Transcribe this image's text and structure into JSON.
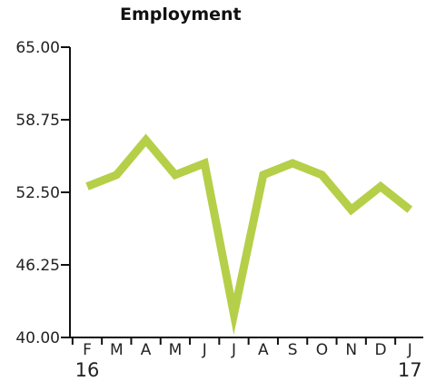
{
  "chart_data": {
    "type": "line",
    "title": "Employment",
    "xlabel": "",
    "ylabel": "",
    "categories": [
      "F",
      "M",
      "A",
      "M",
      "J",
      "J",
      "A",
      "S",
      "O",
      "N",
      "D",
      "J"
    ],
    "year_labels": [
      {
        "text": "16",
        "category_index": 0
      },
      {
        "text": "17",
        "category_index": 11
      }
    ],
    "yticks": [
      "40.00",
      "46.25",
      "52.50",
      "58.75",
      "65.00"
    ],
    "ylim": [
      40.0,
      65.0
    ],
    "grid": false,
    "series": [
      {
        "values": [
          53.0,
          54.0,
          57.0,
          54.0,
          55.0,
          42.0,
          54.0,
          55.0,
          54.0,
          51.0,
          53.0,
          51.0
        ],
        "color": "#b5cf49"
      }
    ],
    "axis_color": "#111111"
  }
}
